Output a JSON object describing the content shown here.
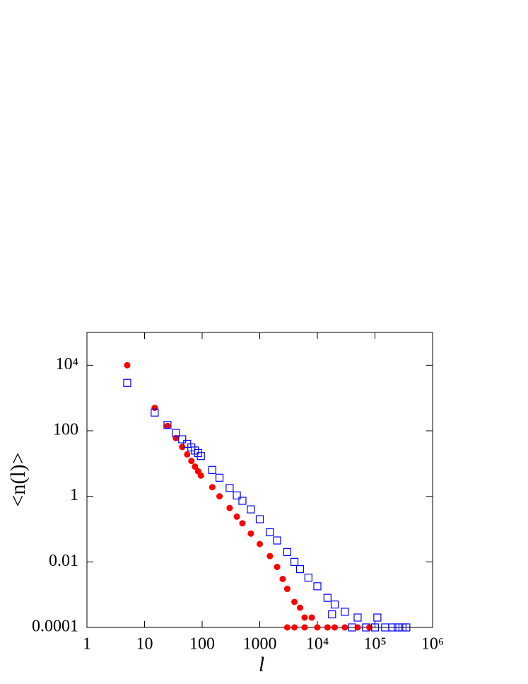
{
  "chart_data": {
    "type": "scatter",
    "x_label": "l",
    "y_label": "<n(l)>",
    "log_x": true,
    "log_y": true,
    "grid": false,
    "xlim": [
      1,
      1000000
    ],
    "ylim": [
      0.0001,
      100000
    ],
    "xticks": [
      1,
      10,
      100,
      1000,
      {
        "value": 10000,
        "label": "10⁴"
      },
      {
        "value": 100000,
        "label": "10⁵"
      },
      {
        "value": 1000000,
        "label": "10⁶"
      }
    ],
    "yticks": [
      {
        "value": 0.0001,
        "label": "0.0001"
      },
      0.01,
      1,
      100,
      {
        "value": 10000,
        "label": "10⁴"
      }
    ],
    "series": [
      {
        "marker": "circle",
        "color": "#ff0000",
        "x": [
          5,
          15,
          25,
          35,
          45,
          55,
          65,
          75,
          85,
          95,
          150,
          200,
          300,
          400,
          500,
          700,
          1000,
          1500,
          2000,
          2500,
          3000,
          4000,
          5000,
          6000,
          3000,
          4000,
          6000,
          8000,
          10000,
          15000,
          20000,
          30000,
          50000,
          80000
        ],
        "y": [
          10000,
          500,
          140,
          60,
          32,
          19,
          12,
          8.1,
          5.8,
          4.3,
          1.9,
          1.0,
          0.44,
          0.24,
          0.15,
          0.073,
          0.035,
          0.015,
          0.007,
          0.003,
          0.0015,
          0.0006,
          0.0004,
          0.0002,
          0.0001,
          0.0001,
          0.0001,
          0.0002,
          0.0001,
          0.0001,
          0.0001,
          0.0001,
          0.0001,
          0.0001
        ]
      },
      {
        "marker": "open-square",
        "color": "#0000ff",
        "x": [
          5,
          15,
          25,
          35,
          45,
          55,
          65,
          75,
          85,
          95,
          150,
          200,
          300,
          400,
          500,
          700,
          1000,
          1500,
          2000,
          3000,
          4000,
          5000,
          7000,
          10000,
          15000,
          18000,
          20000,
          30000,
          50000,
          110000,
          40000,
          70000,
          100000,
          150000,
          200000,
          250000,
          300000,
          350000
        ],
        "y": [
          2900,
          360,
          150,
          86,
          55,
          40,
          31,
          25,
          21,
          17,
          6.4,
          3.7,
          1.8,
          1.06,
          0.73,
          0.4,
          0.2,
          0.08,
          0.045,
          0.02,
          0.01,
          0.006,
          0.0033,
          0.0018,
          0.0008,
          0.00025,
          0.0005,
          0.0003,
          0.0002,
          0.0002,
          0.0001,
          0.0001,
          0.0001,
          0.0001,
          0.0001,
          0.0001,
          0.0001,
          0.0001
        ]
      }
    ]
  }
}
